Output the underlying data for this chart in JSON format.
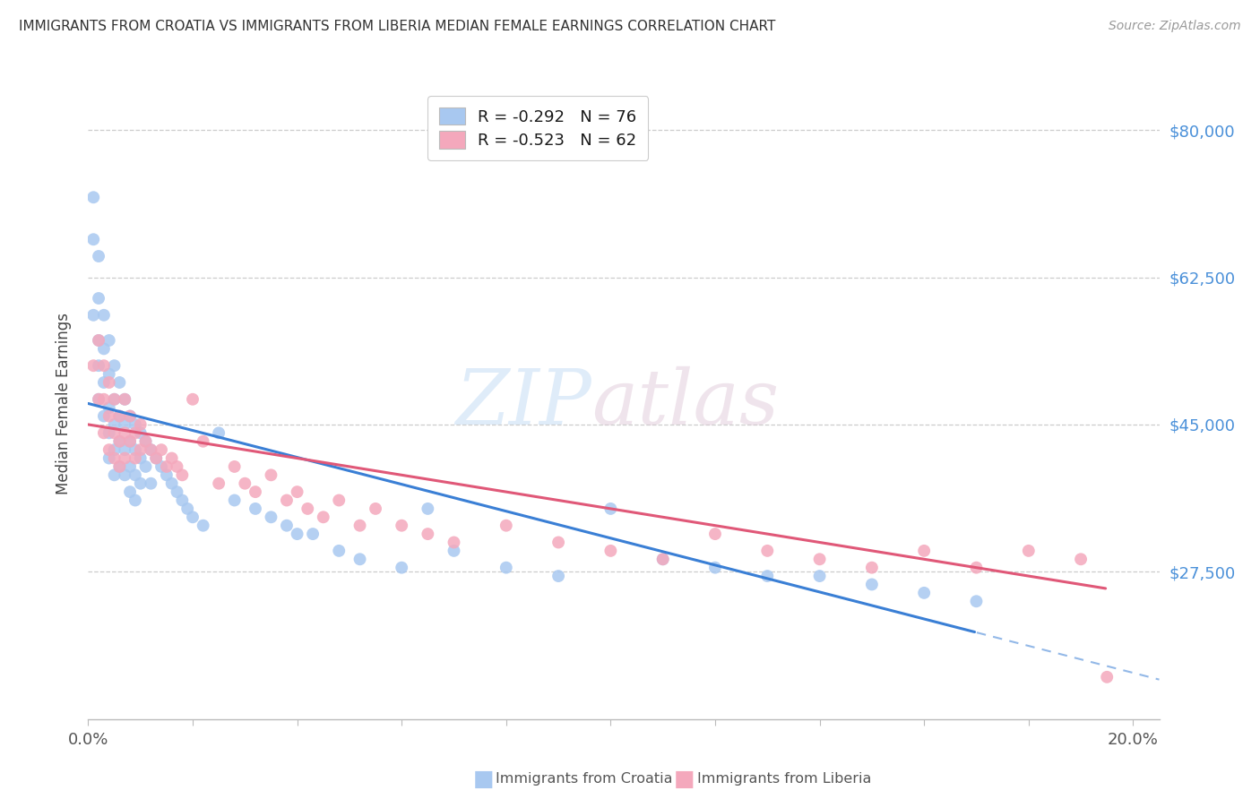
{
  "title": "IMMIGRANTS FROM CROATIA VS IMMIGRANTS FROM LIBERIA MEDIAN FEMALE EARNINGS CORRELATION CHART",
  "source": "Source: ZipAtlas.com",
  "ylabel": "Median Female Earnings",
  "xlim": [
    0.0,
    0.205
  ],
  "ylim": [
    10000,
    85000
  ],
  "yticks": [
    27500,
    45000,
    62500,
    80000
  ],
  "ytick_labels": [
    "$27,500",
    "$45,000",
    "$62,500",
    "$80,000"
  ],
  "croatia_color": "#a8c8f0",
  "liberia_color": "#f4a8bc",
  "croatia_line_color": "#3a7fd5",
  "liberia_line_color": "#e05878",
  "croatia_R": -0.292,
  "croatia_N": 76,
  "liberia_R": -0.523,
  "liberia_N": 62,
  "watermark_zip": "ZIP",
  "watermark_atlas": "atlas",
  "croatia_x": [
    0.001,
    0.001,
    0.001,
    0.002,
    0.002,
    0.002,
    0.002,
    0.002,
    0.003,
    0.003,
    0.003,
    0.003,
    0.004,
    0.004,
    0.004,
    0.004,
    0.004,
    0.005,
    0.005,
    0.005,
    0.005,
    0.005,
    0.006,
    0.006,
    0.006,
    0.006,
    0.007,
    0.007,
    0.007,
    0.007,
    0.008,
    0.008,
    0.008,
    0.008,
    0.009,
    0.009,
    0.009,
    0.009,
    0.01,
    0.01,
    0.01,
    0.011,
    0.011,
    0.012,
    0.012,
    0.013,
    0.014,
    0.015,
    0.016,
    0.017,
    0.018,
    0.019,
    0.02,
    0.022,
    0.025,
    0.028,
    0.032,
    0.035,
    0.038,
    0.04,
    0.043,
    0.048,
    0.052,
    0.06,
    0.065,
    0.07,
    0.08,
    0.09,
    0.1,
    0.11,
    0.12,
    0.13,
    0.14,
    0.15,
    0.16,
    0.17
  ],
  "croatia_y": [
    72000,
    67000,
    58000,
    65000,
    60000,
    55000,
    52000,
    48000,
    58000,
    54000,
    50000,
    46000,
    55000,
    51000,
    47000,
    44000,
    41000,
    52000,
    48000,
    45000,
    42000,
    39000,
    50000,
    46000,
    43000,
    40000,
    48000,
    45000,
    42000,
    39000,
    46000,
    43000,
    40000,
    37000,
    45000,
    42000,
    39000,
    36000,
    44000,
    41000,
    38000,
    43000,
    40000,
    42000,
    38000,
    41000,
    40000,
    39000,
    38000,
    37000,
    36000,
    35000,
    34000,
    33000,
    44000,
    36000,
    35000,
    34000,
    33000,
    32000,
    32000,
    30000,
    29000,
    28000,
    35000,
    30000,
    28000,
    27000,
    35000,
    29000,
    28000,
    27000,
    27000,
    26000,
    25000,
    24000
  ],
  "liberia_x": [
    0.001,
    0.002,
    0.002,
    0.003,
    0.003,
    0.003,
    0.004,
    0.004,
    0.004,
    0.005,
    0.005,
    0.005,
    0.006,
    0.006,
    0.006,
    0.007,
    0.007,
    0.007,
    0.008,
    0.008,
    0.009,
    0.009,
    0.01,
    0.01,
    0.011,
    0.012,
    0.013,
    0.014,
    0.015,
    0.016,
    0.017,
    0.018,
    0.02,
    0.022,
    0.025,
    0.028,
    0.03,
    0.032,
    0.035,
    0.038,
    0.04,
    0.042,
    0.045,
    0.048,
    0.052,
    0.055,
    0.06,
    0.065,
    0.07,
    0.08,
    0.09,
    0.1,
    0.11,
    0.12,
    0.13,
    0.14,
    0.15,
    0.16,
    0.17,
    0.18,
    0.19,
    0.195
  ],
  "liberia_y": [
    52000,
    55000,
    48000,
    52000,
    48000,
    44000,
    50000,
    46000,
    42000,
    48000,
    44000,
    41000,
    46000,
    43000,
    40000,
    48000,
    44000,
    41000,
    46000,
    43000,
    44000,
    41000,
    45000,
    42000,
    43000,
    42000,
    41000,
    42000,
    40000,
    41000,
    40000,
    39000,
    48000,
    43000,
    38000,
    40000,
    38000,
    37000,
    39000,
    36000,
    37000,
    35000,
    34000,
    36000,
    33000,
    35000,
    33000,
    32000,
    31000,
    33000,
    31000,
    30000,
    29000,
    32000,
    30000,
    29000,
    28000,
    30000,
    28000,
    30000,
    29000,
    15000
  ]
}
